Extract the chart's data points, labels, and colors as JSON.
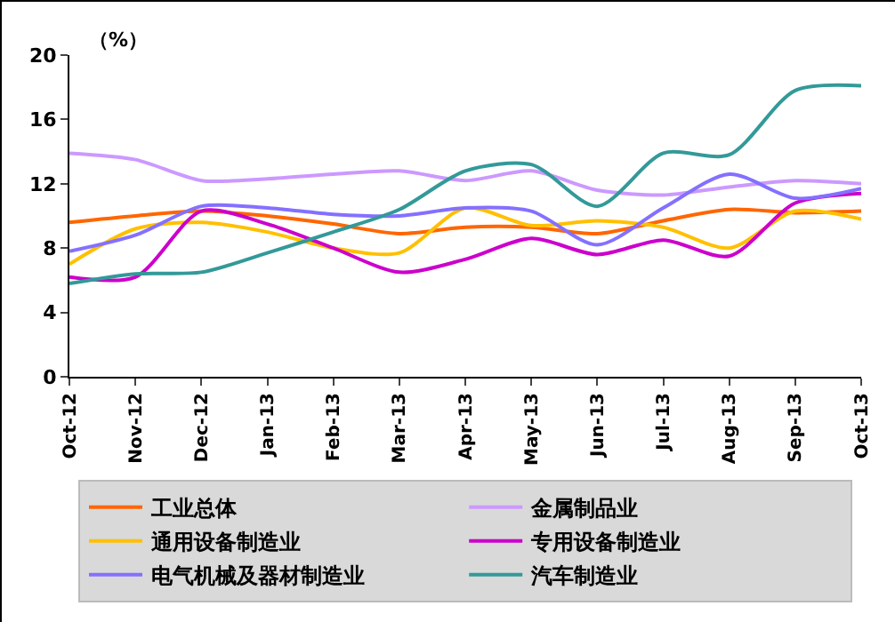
{
  "chart_data": {
    "type": "line",
    "ylabel": "（%）",
    "categories": [
      "Oct-12",
      "Nov-12",
      "Dec-12",
      "Jan-13",
      "Feb-13",
      "Mar-13",
      "Apr-13",
      "May-13",
      "Jun-13",
      "Jul-13",
      "Aug-13",
      "Sep-13",
      "Oct-13"
    ],
    "series": [
      {
        "name": "工业总体",
        "color": "#ff6600",
        "values": [
          9.6,
          10.0,
          10.3,
          10.0,
          9.5,
          8.9,
          9.3,
          9.3,
          8.9,
          9.7,
          10.4,
          10.2,
          10.3
        ]
      },
      {
        "name": "金属制品业",
        "color": "#cc99ff",
        "values": [
          13.9,
          13.5,
          12.2,
          12.3,
          12.6,
          12.8,
          12.2,
          12.8,
          11.6,
          11.3,
          11.8,
          12.2,
          12.0
        ]
      },
      {
        "name": "通用设备制造业",
        "color": "#ffc000",
        "values": [
          7.0,
          9.2,
          9.6,
          9.0,
          8.0,
          7.7,
          10.5,
          9.4,
          9.7,
          9.3,
          8.0,
          10.3,
          9.8
        ]
      },
      {
        "name": "专用设备制造业",
        "color": "#cc00cc",
        "values": [
          6.2,
          6.2,
          10.3,
          9.5,
          8.0,
          6.5,
          7.3,
          8.6,
          7.6,
          8.5,
          7.5,
          10.8,
          11.4
        ]
      },
      {
        "name": "电气机械及器材制造业",
        "color": "#8470ff",
        "values": [
          7.8,
          8.8,
          10.6,
          10.5,
          10.1,
          10.0,
          10.5,
          10.3,
          8.2,
          10.5,
          12.6,
          11.1,
          11.7
        ]
      },
      {
        "name": "汽车制造业",
        "color": "#339999",
        "values": [
          5.8,
          6.4,
          6.5,
          7.7,
          9.0,
          10.4,
          12.8,
          13.2,
          10.6,
          13.9,
          13.8,
          17.8,
          18.1
        ]
      }
    ],
    "ylim": [
      0,
      20
    ],
    "yticks": [
      0,
      4,
      8,
      12,
      16,
      20
    ],
    "grid": false,
    "legend": "bottom",
    "marker": "none",
    "line_style": "solid"
  }
}
